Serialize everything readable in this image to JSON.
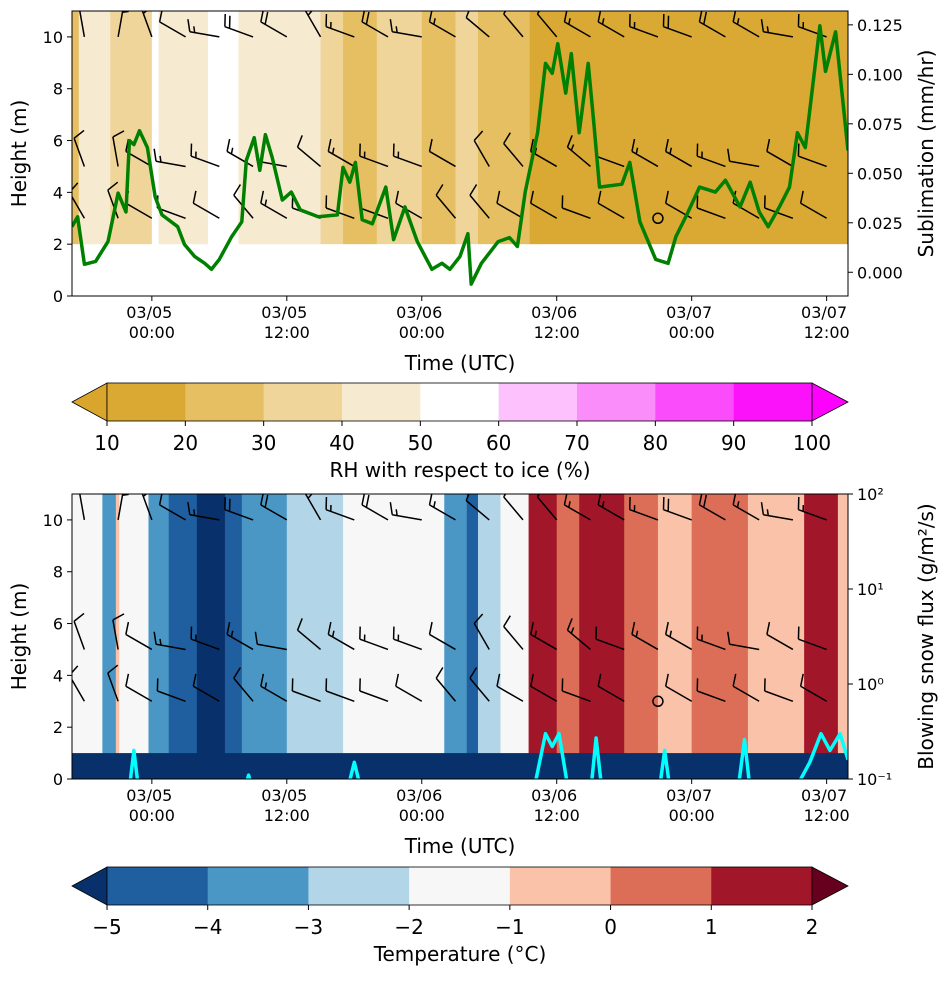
{
  "chart_data": [
    {
      "type": "contour",
      "xlabel": "Time (UTC)",
      "ylabel": "Height (m)",
      "y2label": "Sublimation (mm/hr)",
      "xlim": [
        -7.1,
        61.9
      ],
      "xticks": [
        {
          "value": 0,
          "label": "03/05 00:00"
        },
        {
          "value": 12,
          "label": "03/05 12:00"
        },
        {
          "value": 24,
          "label": "03/06 00:00"
        },
        {
          "value": 36,
          "label": "03/06 12:00"
        },
        {
          "value": 48,
          "label": "03/07 00:00"
        },
        {
          "value": 60,
          "label": "03/07 12:00"
        }
      ],
      "ylim": [
        0,
        11
      ],
      "yticks": [
        0,
        2,
        4,
        6,
        8,
        10
      ],
      "y2lim": [
        -0.012,
        0.132
      ],
      "y2log": false,
      "y2ticks": [
        {
          "value": 0,
          "label": "0.000"
        },
        {
          "value": 0.025,
          "label": "0.025"
        },
        {
          "value": 0.05,
          "label": "0.050"
        },
        {
          "value": 0.075,
          "label": "0.075"
        },
        {
          "value": 0.1,
          "label": "0.100"
        },
        {
          "value": 0.125,
          "label": "0.125"
        }
      ],
      "field": {
        "bottom": 2,
        "edges": [
          -7.1,
          -6.5,
          -3.7,
          0,
          0.6,
          5,
          7.7,
          15,
          17,
          20,
          24,
          27,
          29,
          33.6,
          61.9
        ],
        "values": [
          25,
          45,
          35,
          55,
          45,
          55,
          45,
          35,
          25,
          35,
          25,
          35,
          25,
          15
        ]
      },
      "line": {
        "color": "#008000",
        "axis": "y2",
        "x": [
          -7.1,
          -6.6,
          -6.0,
          -5.0,
          -3.9,
          -3.0,
          -2.3,
          -2.0,
          -1.6,
          -1.1,
          -0.4,
          0.3,
          0.9,
          2.3,
          2.9,
          3.8,
          4.7,
          5.3,
          6.0,
          7.1,
          8.0,
          8.4,
          9.1,
          9.6,
          10.1,
          10.7,
          11.6,
          12.4,
          13.2,
          14.8,
          16.5,
          17.0,
          17.6,
          18.1,
          18.7,
          19.6,
          20.8,
          21.5,
          22.5,
          23.6,
          24.9,
          25.8,
          26.5,
          27.4,
          28.1,
          28.4,
          29.3,
          30.8,
          31.8,
          32.5,
          33.2,
          34.3,
          35.0,
          35.6,
          36.1,
          36.8,
          37.3,
          38.0,
          38.8,
          39.3,
          39.8,
          41.8,
          42.5,
          43.4,
          44.8,
          45.9,
          46.6,
          47.6,
          48.7,
          50.1,
          51.0,
          52.3,
          53.2,
          54.0,
          54.8,
          55.8,
          56.7,
          57.4,
          58.1,
          59.4,
          59.9,
          60.8,
          61.9
        ],
        "values": [
          0.023,
          0.028,
          0.004,
          0.0055,
          0.0155,
          0.04,
          0.0305,
          0.0665,
          0.0645,
          0.0715,
          0.063,
          0.038,
          0.029,
          0.023,
          0.014,
          0.008,
          0.0045,
          0.0015,
          0.0065,
          0.018,
          0.0255,
          0.0565,
          0.068,
          0.0515,
          0.0695,
          0.058,
          0.0365,
          0.0405,
          0.0315,
          0.028,
          0.029,
          0.053,
          0.0455,
          0.0555,
          0.0265,
          0.0245,
          0.043,
          0.0165,
          0.033,
          0.0155,
          0.0015,
          0.0045,
          0.0015,
          0.008,
          0.0195,
          -0.006,
          0.0045,
          0.0155,
          0.0175,
          0.013,
          0.0405,
          0.0705,
          0.1055,
          0.1005,
          0.1155,
          0.0905,
          0.1105,
          0.0705,
          0.1055,
          0.0755,
          0.043,
          0.0445,
          0.0555,
          0.0255,
          0.0065,
          0.0045,
          0.018,
          0.0295,
          0.043,
          0.0405,
          0.0465,
          0.033,
          0.0455,
          0.0305,
          0.023,
          0.033,
          0.043,
          0.0705,
          0.063,
          0.1245,
          0.1015,
          0.1215,
          0.0615
        ]
      },
      "colorbar": {
        "label": "RH with respect to ice (%)",
        "levels": [
          10,
          20,
          30,
          40,
          50,
          60,
          70,
          80,
          90,
          100
        ],
        "colors": [
          "#daa933",
          "#e6bf63",
          "#f0d59b",
          "#f6ead0",
          "#ffffff",
          "#fdc2fd",
          "#fb8dfb",
          "#fb4cfb",
          "#fb12fb"
        ],
        "extend_colors": [
          "#d9a52c",
          "#ff00ff"
        ],
        "ticks": [
          10,
          20,
          30,
          40,
          50,
          60,
          70,
          80,
          90,
          100
        ]
      }
    },
    {
      "type": "contour",
      "xlabel": "Time (UTC)",
      "ylabel": "Height (m)",
      "y2label": "Blowing snow flux (g/m²/s)",
      "xlim": [
        -7.1,
        61.9
      ],
      "xticks": [
        {
          "value": 0,
          "label": "03/05 00:00"
        },
        {
          "value": 12,
          "label": "03/05 12:00"
        },
        {
          "value": 24,
          "label": "03/06 00:00"
        },
        {
          "value": 36,
          "label": "03/06 12:00"
        },
        {
          "value": 48,
          "label": "03/07 00:00"
        },
        {
          "value": 60,
          "label": "03/07 12:00"
        }
      ],
      "ylim": [
        0,
        11
      ],
      "yticks": [
        0,
        2,
        4,
        6,
        8,
        10
      ],
      "y2lim": [
        0.1,
        100
      ],
      "y2log": true,
      "y2ticks": [
        {
          "value": 0.1,
          "label": "10⁻¹"
        },
        {
          "value": 1,
          "label": "10⁰"
        },
        {
          "value": 10,
          "label": "10¹"
        },
        {
          "value": 100,
          "label": "10²"
        }
      ],
      "field": {
        "bottom": 0,
        "edges": [
          -7.1,
          -4.4,
          -3.2,
          -2.9,
          -0.3,
          1.5,
          4,
          6.5,
          8,
          12,
          17,
          26,
          28,
          29,
          31,
          33.5,
          36,
          38,
          42,
          45,
          48,
          53,
          58,
          61,
          61.9
        ],
        "values": [
          -1.5,
          -3.5,
          -0.5,
          -1.5,
          -3.5,
          -4.5,
          -5.5,
          -4.5,
          -3.5,
          -2.5,
          -1.5,
          -3.5,
          -4.5,
          -2.5,
          -1.5,
          1.5,
          0.5,
          1.5,
          0.5,
          -0.5,
          0.5,
          -0.5,
          1.5,
          -0.5
        ],
        "surface_layer": {
          "top": 1,
          "value": -5.5
        }
      },
      "line": {
        "color": "#00ffff",
        "axis": "y2",
        "x": [
          -7.1,
          -3,
          -2,
          -1.6,
          -1.2,
          -0.5,
          6,
          8,
          8.6,
          9.2,
          17,
          18,
          19,
          30,
          34,
          35,
          35.6,
          36.2,
          37,
          39,
          39.5,
          40,
          45,
          45.6,
          46.2,
          52,
          52.7,
          53.3,
          57,
          58.5,
          59.5,
          60.3,
          61.2,
          61.9
        ],
        "values": [
          0.05,
          0.05,
          0.08,
          0.2,
          0.08,
          0.05,
          0.05,
          0.06,
          0.11,
          0.06,
          0.05,
          0.15,
          0.05,
          0.05,
          0.08,
          0.3,
          0.22,
          0.3,
          0.08,
          0.07,
          0.27,
          0.08,
          0.06,
          0.2,
          0.06,
          0.06,
          0.26,
          0.06,
          0.07,
          0.15,
          0.3,
          0.2,
          0.3,
          0.16
        ]
      },
      "colorbar": {
        "label": "Temperature (°C)",
        "levels": [
          -5,
          -4,
          -3,
          -2,
          -1,
          0,
          1,
          2
        ],
        "colors": [
          "#1f5fa0",
          "#4a97c6",
          "#b3d5e8",
          "#f7f7f7",
          "#fac2a8",
          "#dc6e57",
          "#a11628"
        ],
        "extend_colors": [
          "#08306b",
          "#67001f"
        ],
        "ticks": [
          {
            "value": -5,
            "label": "−5"
          },
          {
            "value": -4,
            "label": "−4"
          },
          {
            "value": -3,
            "label": "−3"
          },
          {
            "value": -2,
            "label": "−2"
          },
          {
            "value": -1,
            "label": "−1"
          },
          0,
          1,
          2
        ]
      }
    }
  ],
  "wind_barbs": {
    "x": [
      -6,
      -3,
      0,
      3,
      6,
      9,
      12,
      15,
      18,
      21,
      24,
      27,
      30,
      33,
      36,
      39,
      42,
      45,
      48,
      51,
      54,
      57,
      60
    ],
    "sets": [
      {
        "height": 10,
        "direction": [
          350,
          10,
          340,
          300,
          280,
          290,
          300,
          330,
          290,
          300,
          280,
          300,
          310,
          320,
          320,
          300,
          300,
          290,
          290,
          300,
          300,
          280,
          290
        ],
        "speed": [
          10,
          15,
          15,
          10,
          15,
          20,
          20,
          15,
          15,
          20,
          15,
          15,
          10,
          10,
          10,
          15,
          15,
          15,
          20,
          20,
          15,
          15,
          15
        ]
      },
      {
        "height": 5,
        "direction": [
          340,
          350,
          300,
          280,
          290,
          300,
          280,
          310,
          300,
          290,
          290,
          300,
          330,
          320,
          300,
          310,
          290,
          300,
          300,
          290,
          280,
          300,
          290
        ],
        "speed": [
          10,
          10,
          10,
          15,
          15,
          15,
          10,
          10,
          15,
          15,
          15,
          10,
          10,
          10,
          15,
          15,
          10,
          15,
          15,
          15,
          10,
          10,
          10
        ]
      },
      {
        "height": 3,
        "direction": [
          330,
          340,
          300,
          290,
          300,
          320,
          300,
          290,
          290,
          290,
          300,
          320,
          320,
          300,
          300,
          290,
          300,
          300,
          300,
          290,
          300,
          290,
          300
        ],
        "speed": [
          10,
          10,
          10,
          10,
          10,
          10,
          15,
          10,
          10,
          10,
          10,
          10,
          10,
          10,
          10,
          10,
          10,
          0,
          10,
          10,
          10,
          10,
          10
        ]
      }
    ]
  }
}
